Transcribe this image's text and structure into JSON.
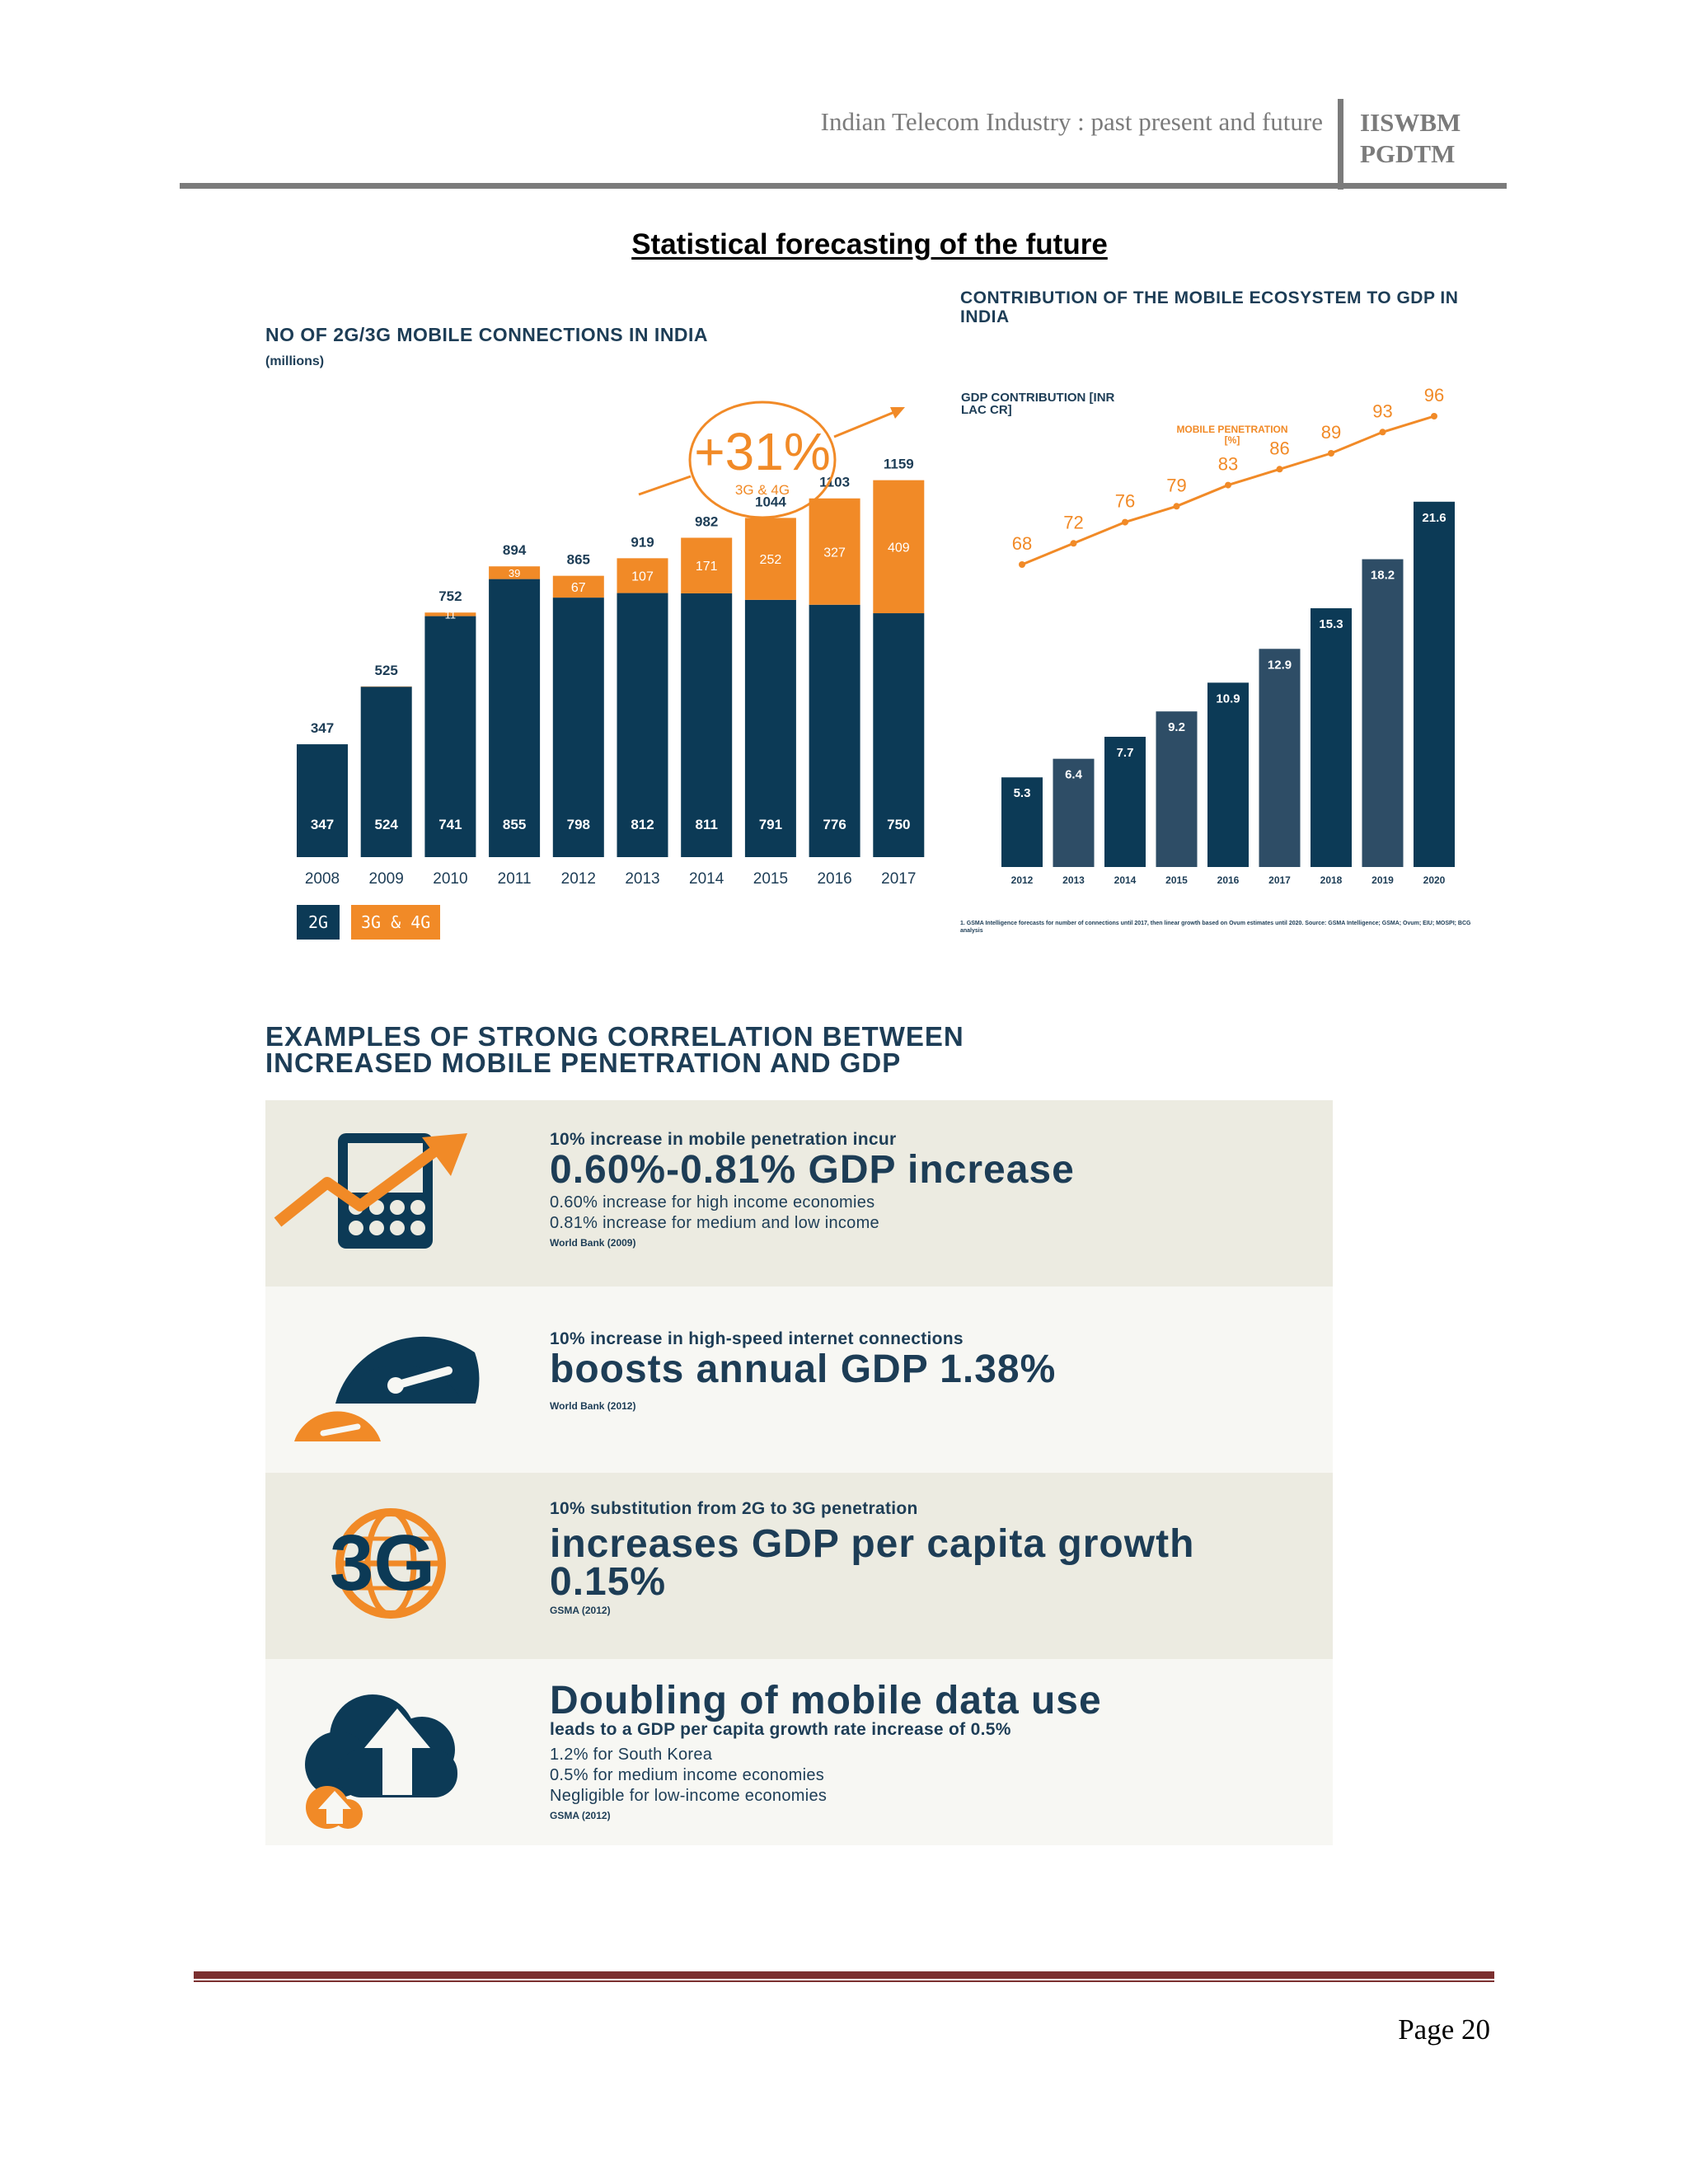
{
  "header": {
    "title": "Indian Telecom Industry : past present and future",
    "org_line1": "IISWBM",
    "org_line2": "PGDTM"
  },
  "doc_title": "Statistical forecasting of the future",
  "chart_data": [
    {
      "type": "bar",
      "title": "NO OF 2G/3G MOBILE CONNECTIONS IN INDIA",
      "subtitle": "(millions)",
      "categories": [
        "2008",
        "2009",
        "2010",
        "2011",
        "2012",
        "2013",
        "2014",
        "2015",
        "2016",
        "2017"
      ],
      "series": [
        {
          "name": "2G",
          "values": [
            347,
            524,
            741,
            855,
            798,
            812,
            811,
            791,
            776,
            750
          ],
          "color": "#0c3a56"
        },
        {
          "name": "3G & 4G",
          "values": [
            0,
            1,
            11,
            39,
            67,
            107,
            171,
            252,
            327,
            409
          ],
          "color": "#f18a27"
        }
      ],
      "totals": [
        347,
        525,
        752,
        894,
        865,
        919,
        982,
        1044,
        1103,
        1159
      ],
      "annotation": {
        "value": "+31%",
        "label": "3G & 4G"
      },
      "stacked": true,
      "ylim": [
        0,
        1300
      ],
      "legend": "bottom-left"
    },
    {
      "type": "bar",
      "title": "CONTRIBUTION OF THE MOBILE ECOSYSTEM TO GDP IN INDIA",
      "ylabel": "GDP CONTRIBUTION [INR LAC CR]",
      "categories": [
        "2012",
        "2013",
        "2014",
        "2015",
        "2016",
        "2017",
        "2018",
        "2019",
        "2020"
      ],
      "values": [
        5.3,
        6.4,
        7.7,
        9.2,
        10.9,
        12.9,
        15.3,
        18.2,
        21.6
      ],
      "colors": [
        "#0c3a56",
        "#2e4d66"
      ],
      "ylim": [
        0,
        25
      ],
      "line_series": {
        "name": "MOBILE PENETRATION [%]",
        "values": [
          68,
          72,
          76,
          79,
          83,
          86,
          89,
          93,
          96
        ],
        "color": "#f18a27"
      },
      "note": "1. GSMA Intelligence forecasts for number of connections until 2017, then linear growth based on Ovum estimates until 2020. Source: GSMA Intelligence; GSMA; Ovum; EIU; MOSPI; BCG analysis"
    }
  ],
  "correlation": {
    "title_line1": "EXAMPLES OF STRONG CORRELATION BETWEEN",
    "title_line2": "INCREASED MOBILE PENETRATION AND GDP",
    "rows": [
      {
        "icon": "phone-growth-icon",
        "small": "10% increase in mobile penetration incur",
        "big": "0.60%-0.81% GDP increase",
        "lines": [
          "0.60% increase for high income economies",
          "0.81% increase for medium and low income"
        ],
        "source": "World Bank (2009)"
      },
      {
        "icon": "speedometer-icon",
        "small": "10% increase in high-speed internet connections",
        "big": "boosts annual GDP 1.38%",
        "lines": [],
        "source": "World Bank (2012)"
      },
      {
        "icon": "3g-globe-icon",
        "icon_text": "3G",
        "small": "10% substitution from 2G to 3G penetration",
        "big": "increases GDP per capita growth 0.15%",
        "lines": [],
        "source": "GSMA (2012)"
      },
      {
        "icon": "cloud-upload-icon",
        "small": "leads to a GDP per capita growth rate increase of 0.5%",
        "big": "Doubling of mobile data use",
        "lines": [
          "1.2% for South Korea",
          "0.5% for medium income economies",
          "Negligible for low-income economies"
        ],
        "source": "GSMA (2012)"
      }
    ]
  },
  "footer": {
    "page": "Page 20"
  }
}
